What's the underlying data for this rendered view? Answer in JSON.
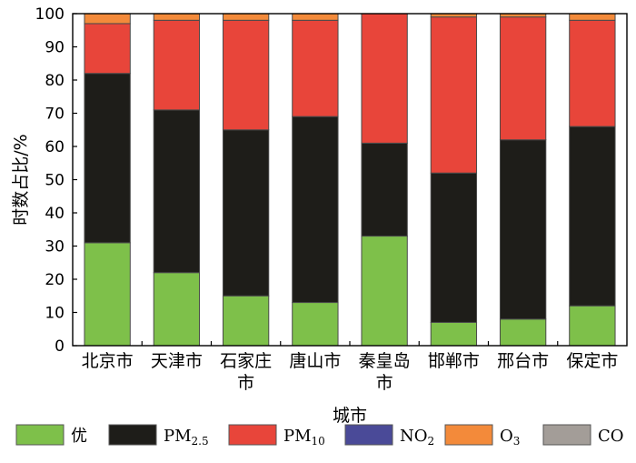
{
  "chart_data": {
    "type": "bar",
    "stacked": true,
    "xlabel": "城市",
    "ylabel": "时数占比/%",
    "ylim": [
      0,
      100
    ],
    "yticks": [
      0,
      10,
      20,
      30,
      40,
      50,
      60,
      70,
      80,
      90,
      100
    ],
    "grid": false,
    "legend_position": "bottom",
    "categories": [
      [
        "北京市"
      ],
      [
        "天津市"
      ],
      [
        "石家庄",
        "市"
      ],
      [
        "唐山市"
      ],
      [
        "秦皇岛",
        "市"
      ],
      [
        "邯郸市"
      ],
      [
        "邢台市"
      ],
      [
        "保定市"
      ]
    ],
    "series": [
      {
        "name": "优",
        "legend": {
          "base": "优",
          "sub": ""
        },
        "color": "#7ec04a",
        "values": [
          31,
          22,
          15,
          13,
          33,
          7,
          8,
          12
        ]
      },
      {
        "name": "PM2.5",
        "legend": {
          "base": "PM",
          "sub": "2.5"
        },
        "color": "#1e1d19",
        "values": [
          51,
          49,
          50,
          56,
          28,
          45,
          54,
          54
        ]
      },
      {
        "name": "PM10",
        "legend": {
          "base": "PM",
          "sub": "10"
        },
        "color": "#e8453a",
        "values": [
          15,
          27,
          33,
          29,
          39,
          47,
          37,
          32
        ]
      },
      {
        "name": "NO2",
        "legend": {
          "base": "NO",
          "sub": "2"
        },
        "color": "#4a4a98",
        "values": [
          0,
          0,
          0,
          0,
          0,
          0,
          0,
          0
        ]
      },
      {
        "name": "O3",
        "legend": {
          "base": "O",
          "sub": "3"
        },
        "color": "#f38a3a",
        "values": [
          3,
          2,
          2,
          2,
          0,
          1,
          1,
          2
        ]
      },
      {
        "name": "CO",
        "legend": {
          "base": "CO",
          "sub": ""
        },
        "color": "#a39d98",
        "values": [
          0,
          0,
          0,
          0,
          0,
          0,
          0,
          0
        ]
      }
    ]
  }
}
